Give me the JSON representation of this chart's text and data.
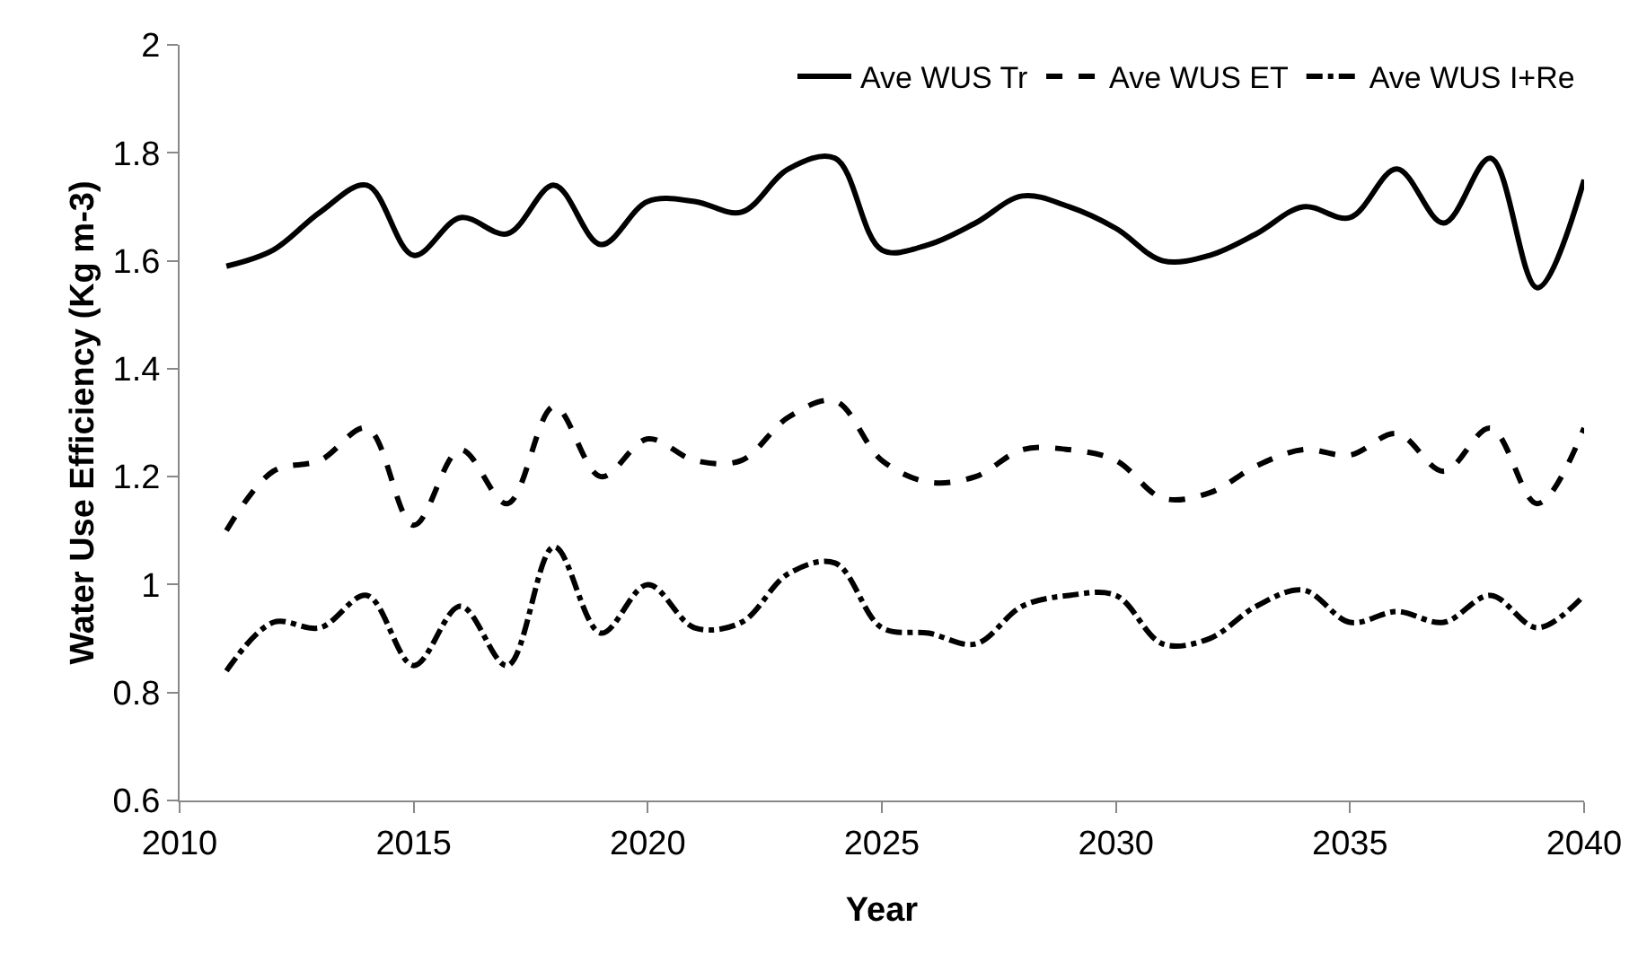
{
  "chart_data": {
    "type": "line",
    "xlabel": "Year",
    "ylabel": "Water Use Efficiency (Kg m-3)",
    "x": [
      2011,
      2012,
      2013,
      2014,
      2015,
      2016,
      2017,
      2018,
      2019,
      2020,
      2021,
      2022,
      2023,
      2024,
      2025,
      2026,
      2027,
      2028,
      2029,
      2030,
      2031,
      2032,
      2033,
      2034,
      2035,
      2036,
      2037,
      2038,
      2039,
      2040
    ],
    "series": [
      {
        "name": "Ave WUS Tr",
        "color": "#000000",
        "line_style": "solid",
        "values": [
          1.59,
          1.62,
          1.69,
          1.74,
          1.61,
          1.68,
          1.65,
          1.74,
          1.63,
          1.71,
          1.71,
          1.69,
          1.77,
          1.79,
          1.62,
          1.63,
          1.67,
          1.72,
          1.7,
          1.66,
          1.6,
          1.61,
          1.65,
          1.7,
          1.68,
          1.77,
          1.67,
          1.79,
          1.55,
          1.75
        ]
      },
      {
        "name": "Ave WUS ET",
        "color": "#000000",
        "line_style": "dashed",
        "values": [
          1.1,
          1.21,
          1.23,
          1.29,
          1.11,
          1.25,
          1.15,
          1.33,
          1.2,
          1.27,
          1.23,
          1.23,
          1.31,
          1.34,
          1.23,
          1.19,
          1.2,
          1.25,
          1.25,
          1.23,
          1.16,
          1.17,
          1.22,
          1.25,
          1.24,
          1.28,
          1.21,
          1.29,
          1.15,
          1.29
        ]
      },
      {
        "name": "Ave WUS I+Re",
        "color": "#000000",
        "line_style": "dashdot",
        "values": [
          0.84,
          0.93,
          0.92,
          0.98,
          0.85,
          0.96,
          0.85,
          1.07,
          0.91,
          1.0,
          0.92,
          0.93,
          1.02,
          1.04,
          0.92,
          0.91,
          0.89,
          0.96,
          0.98,
          0.98,
          0.89,
          0.9,
          0.96,
          0.99,
          0.93,
          0.95,
          0.93,
          0.98,
          0.92,
          0.98
        ]
      }
    ],
    "xlim": [
      2010,
      2040
    ],
    "xticks": [
      2010,
      2015,
      2020,
      2025,
      2030,
      2035,
      2040
    ],
    "ylim": [
      0.6,
      2
    ],
    "yticks": [
      0.6,
      0.8,
      1,
      1.2,
      1.4,
      1.6,
      1.8,
      2
    ],
    "grid": false,
    "legend": "top right",
    "marker": "none"
  }
}
